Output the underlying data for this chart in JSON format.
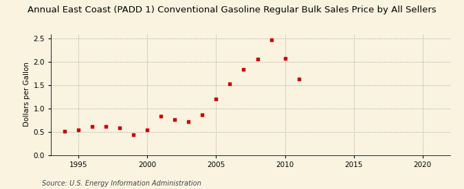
{
  "title": "Annual East Coast (PADD 1) Conventional Gasoline Regular Bulk Sales Price by All Sellers",
  "ylabel": "Dollars per Gallon",
  "source": "Source: U.S. Energy Information Administration",
  "years": [
    1994,
    1995,
    1996,
    1997,
    1998,
    1999,
    2000,
    2001,
    2002,
    2003,
    2004,
    2005,
    2006,
    2007,
    2008,
    2009,
    2010,
    2011
  ],
  "values": [
    0.51,
    0.54,
    0.62,
    0.62,
    0.59,
    0.44,
    0.54,
    0.84,
    0.76,
    0.72,
    0.86,
    1.2,
    1.53,
    1.84,
    2.06,
    2.47,
    2.07,
    1.63
  ],
  "marker_color": "#CC0000",
  "background_color": "#FAF3E0",
  "grid_color": "#999999",
  "xlim": [
    1993,
    2022
  ],
  "ylim": [
    0.0,
    2.6
  ],
  "xticks": [
    1995,
    2000,
    2005,
    2010,
    2015,
    2020
  ],
  "yticks": [
    0.0,
    0.5,
    1.0,
    1.5,
    2.0,
    2.5
  ],
  "title_fontsize": 9.5,
  "label_fontsize": 7.5,
  "tick_fontsize": 7.5,
  "source_fontsize": 7.0
}
